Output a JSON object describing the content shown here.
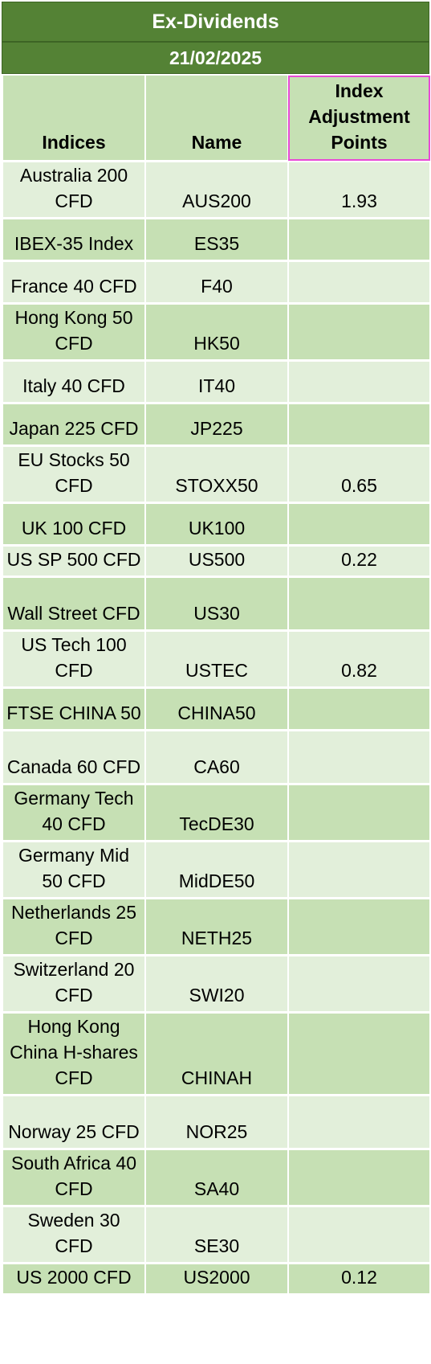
{
  "sheet": {
    "title": "Ex-Dividends",
    "date": "21/02/2025",
    "colors": {
      "band": "#548235",
      "header": "#c6e0b4",
      "row_light": "#e2efda",
      "row_dark": "#c6e0b4",
      "header_highlight_border": "#e84ad6"
    }
  },
  "table": {
    "headers": {
      "indices": "Indices",
      "name": "Name",
      "points": "Index Adjustment Points"
    },
    "rows": [
      {
        "index": "Australia 200 CFD",
        "name": "AUS200",
        "points": "1.93"
      },
      {
        "index": "IBEX-35 Index",
        "name": "ES35",
        "points": ""
      },
      {
        "index": "France 40 CFD",
        "name": "F40",
        "points": ""
      },
      {
        "index": "Hong Kong 50 CFD",
        "name": "HK50",
        "points": ""
      },
      {
        "index": "Italy 40 CFD",
        "name": "IT40",
        "points": ""
      },
      {
        "index": "Japan 225 CFD",
        "name": "JP225",
        "points": ""
      },
      {
        "index": "EU Stocks 50 CFD",
        "name": "STOXX50",
        "points": "0.65"
      },
      {
        "index": "UK 100 CFD",
        "name": "UK100",
        "points": ""
      },
      {
        "index": "US SP 500 CFD",
        "name": "US500",
        "points": "0.22"
      },
      {
        "index": "Wall Street CFD",
        "name": "US30",
        "points": ""
      },
      {
        "index": "US Tech 100 CFD",
        "name": "USTEC",
        "points": "0.82"
      },
      {
        "index": "FTSE CHINA 50",
        "name": "CHINA50",
        "points": ""
      },
      {
        "index": "Canada 60 CFD",
        "name": "CA60",
        "points": ""
      },
      {
        "index": "Germany Tech 40 CFD",
        "name": "TecDE30",
        "points": ""
      },
      {
        "index": "Germany Mid 50 CFD",
        "name": "MidDE50",
        "points": ""
      },
      {
        "index": "Netherlands 25 CFD",
        "name": "NETH25",
        "points": ""
      },
      {
        "index": "Switzerland 20 CFD",
        "name": "SWI20",
        "points": ""
      },
      {
        "index": "Hong Kong China H-shares CFD",
        "name": "CHINAH",
        "points": ""
      },
      {
        "index": "Norway 25 CFD",
        "name": "NOR25",
        "points": ""
      },
      {
        "index": "South Africa 40 CFD",
        "name": "SA40",
        "points": ""
      },
      {
        "index": "Sweden 30 CFD",
        "name": "SE30",
        "points": ""
      },
      {
        "index": "US 2000 CFD",
        "name": "US2000",
        "points": "0.12"
      }
    ]
  }
}
